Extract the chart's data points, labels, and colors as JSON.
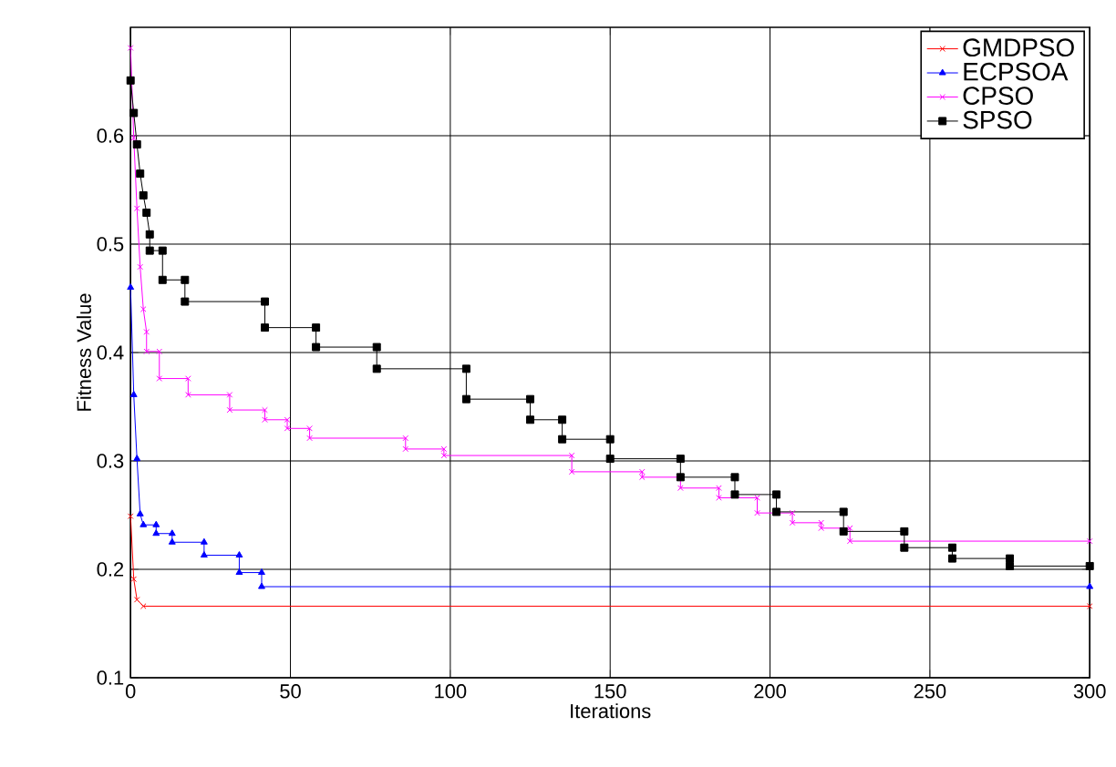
{
  "chart_data": {
    "type": "line",
    "xlabel": "Iterations",
    "ylabel": "Fitness Value",
    "xlim": [
      0,
      300
    ],
    "ylim": [
      0.1,
      0.7
    ],
    "xticks": [
      0,
      50,
      100,
      150,
      200,
      250,
      300
    ],
    "yticks": [
      0.1,
      0.2,
      0.3,
      0.4,
      0.5,
      0.6
    ],
    "grid": true,
    "legend": "top right",
    "line_style": "solid",
    "series": [
      {
        "name": "GMDPSO",
        "color": "#ff0000",
        "marker": "cross",
        "x": [
          0,
          1,
          2,
          4,
          300
        ],
        "values": [
          0.249,
          0.191,
          0.172,
          0.166,
          0.166
        ]
      },
      {
        "name": "ECPSOA",
        "color": "#0000ff",
        "marker": "triangle",
        "x": [
          0,
          1,
          2,
          3,
          4,
          8,
          8,
          13,
          13,
          23,
          23,
          34,
          34,
          41,
          41,
          300
        ],
        "values": [
          0.46,
          0.361,
          0.302,
          0.251,
          0.241,
          0.241,
          0.233,
          0.233,
          0.225,
          0.225,
          0.213,
          0.213,
          0.197,
          0.197,
          0.184,
          0.184
        ]
      },
      {
        "name": "CPSO",
        "color": "#ff00ff",
        "marker": "cross",
        "x": [
          0,
          1,
          2,
          3,
          4,
          5,
          5,
          9,
          9,
          18,
          18,
          31,
          31,
          42,
          42,
          49,
          49,
          56,
          56,
          86,
          86,
          98,
          98,
          138,
          138,
          160,
          160,
          172,
          172,
          184,
          184,
          196,
          196,
          207,
          207,
          216,
          216,
          225,
          225,
          300
        ],
        "values": [
          0.681,
          0.598,
          0.533,
          0.479,
          0.44,
          0.419,
          0.401,
          0.401,
          0.376,
          0.376,
          0.361,
          0.361,
          0.347,
          0.347,
          0.338,
          0.338,
          0.33,
          0.33,
          0.321,
          0.321,
          0.311,
          0.311,
          0.305,
          0.305,
          0.29,
          0.29,
          0.285,
          0.285,
          0.275,
          0.275,
          0.266,
          0.266,
          0.252,
          0.252,
          0.243,
          0.243,
          0.238,
          0.238,
          0.226,
          0.226
        ]
      },
      {
        "name": "SPSO",
        "color": "#000000",
        "marker": "square",
        "x": [
          0,
          1,
          2,
          3,
          4,
          5,
          6,
          6,
          10,
          10,
          17,
          17,
          42,
          42,
          58,
          58,
          77,
          77,
          105,
          105,
          125,
          125,
          135,
          135,
          150,
          150,
          172,
          172,
          189,
          189,
          202,
          202,
          223,
          223,
          242,
          242,
          257,
          257,
          275,
          275,
          300
        ],
        "values": [
          0.651,
          0.621,
          0.592,
          0.565,
          0.545,
          0.529,
          0.509,
          0.494,
          0.494,
          0.467,
          0.467,
          0.447,
          0.447,
          0.423,
          0.423,
          0.405,
          0.405,
          0.385,
          0.385,
          0.357,
          0.357,
          0.338,
          0.338,
          0.32,
          0.32,
          0.302,
          0.302,
          0.285,
          0.285,
          0.269,
          0.269,
          0.253,
          0.253,
          0.235,
          0.235,
          0.22,
          0.22,
          0.21,
          0.21,
          0.203,
          0.203
        ]
      }
    ]
  }
}
